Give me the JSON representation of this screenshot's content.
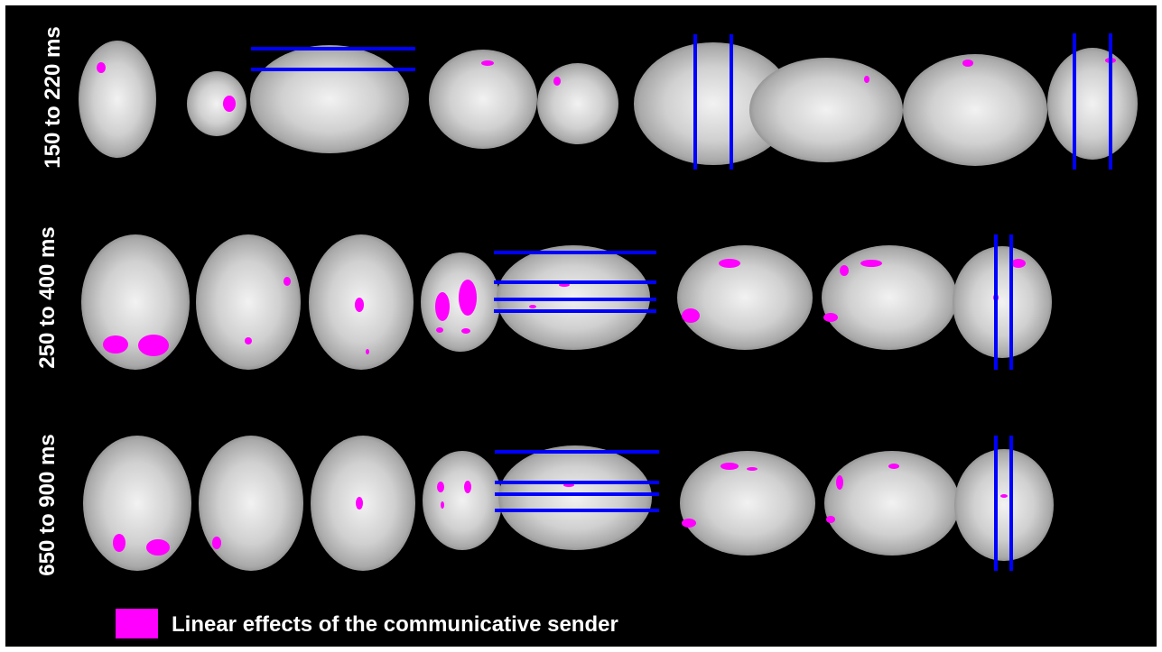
{
  "rows": [
    {
      "label": "150 to 220 ms"
    },
    {
      "label": "250 to 400 ms"
    },
    {
      "label": "650 to 900 ms"
    }
  ],
  "legend": {
    "label": "Linear effects of the communicative sender"
  }
}
